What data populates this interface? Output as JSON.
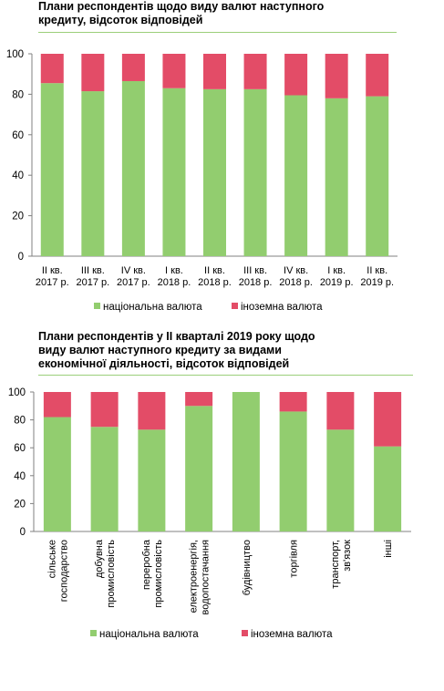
{
  "colors": {
    "national": "#92cd6f",
    "foreign": "#e34c67",
    "axis": "#808080"
  },
  "charts": [
    {
      "title": "Плани респондентів щодо виду валют наступного\nкредиту, відсоток відповідей",
      "legend": [
        "національна валюта",
        "іноземна валюта"
      ]
    },
    {
      "title": "Плани респондентів у ІІ кварталі 2019 року щодо\nвиду валют наступного кредиту за видами\nекономічної діяльності, відсоток відповідей",
      "legend": [
        "національна валюта",
        "іноземна валюта"
      ]
    }
  ],
  "chart_data": [
    {
      "type": "bar",
      "stacked": true,
      "categories": [
        [
          "II кв.",
          "2017 р."
        ],
        [
          "III кв.",
          "2017 р."
        ],
        [
          "IV кв.",
          "2017 р."
        ],
        [
          "I кв.",
          "2018 р."
        ],
        [
          "II кв.",
          "2018 р."
        ],
        [
          "III кв.",
          "2018 р."
        ],
        [
          "IV кв.",
          "2018 р."
        ],
        [
          "I кв.",
          "2019 р."
        ],
        [
          "II кв.",
          "2019 р."
        ]
      ],
      "series": [
        {
          "name": "національна валюта",
          "values": [
            85.5,
            81.5,
            86.5,
            83,
            82.5,
            82.5,
            79.5,
            78,
            79
          ]
        },
        {
          "name": "іноземна валюта",
          "values": [
            14.5,
            18.5,
            13.5,
            17,
            17.5,
            17.5,
            20.5,
            22,
            21
          ]
        }
      ],
      "ylim": [
        0,
        100
      ],
      "yticks": [
        0,
        20,
        40,
        60,
        80,
        100
      ],
      "legend_position": "bottom"
    },
    {
      "type": "bar",
      "stacked": true,
      "categories": [
        [
          "сільське",
          "господарство"
        ],
        [
          "добувна",
          "промисловість"
        ],
        [
          "переробна",
          "промисловість"
        ],
        [
          "електроенергія,",
          "водопостачання"
        ],
        [
          "будівництво"
        ],
        [
          "торгівля"
        ],
        [
          "транспорт,",
          "зв'язок"
        ],
        [
          "інші"
        ]
      ],
      "series": [
        {
          "name": "національна валюта",
          "values": [
            82,
            75,
            73,
            90,
            100,
            86,
            73,
            61
          ]
        },
        {
          "name": "іноземна валюта",
          "values": [
            18,
            25,
            27,
            10,
            0,
            14,
            27,
            39
          ]
        }
      ],
      "ylim": [
        0,
        100
      ],
      "yticks": [
        0,
        20,
        40,
        60,
        80,
        100
      ],
      "legend_position": "bottom"
    }
  ]
}
